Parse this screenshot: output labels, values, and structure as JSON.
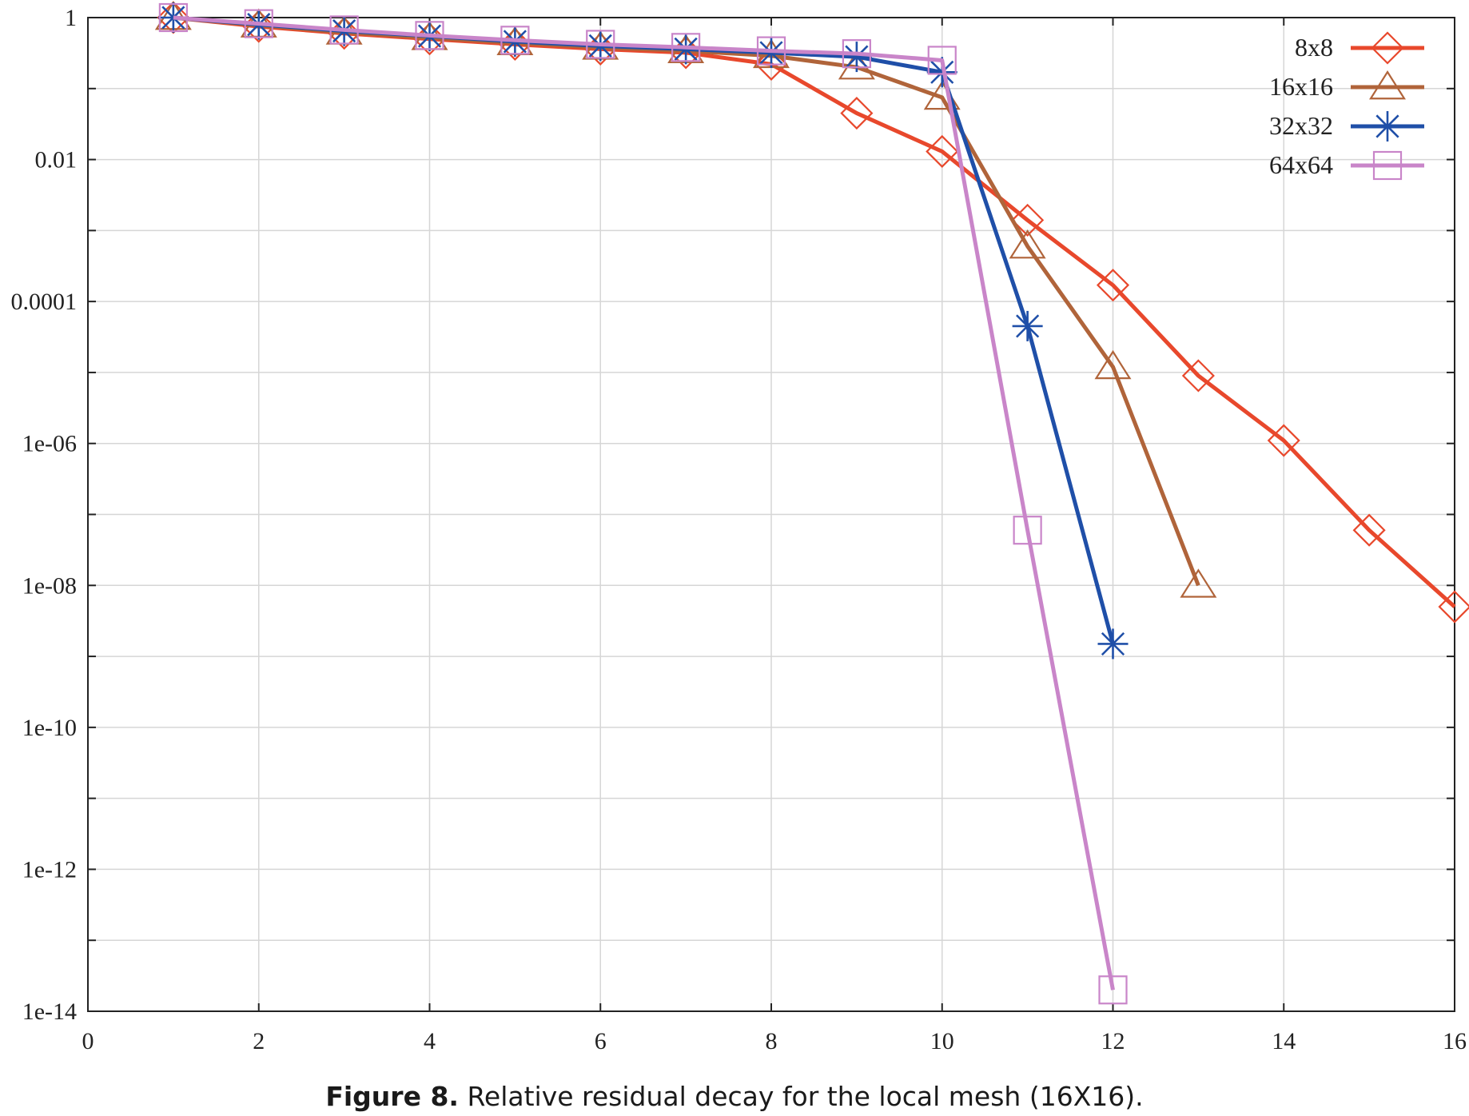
{
  "chart_data": {
    "type": "line",
    "title": "",
    "xlabel": "",
    "ylabel": "",
    "xlim": [
      0,
      16
    ],
    "ylim": [
      1e-14,
      1
    ],
    "yscale": "log",
    "grid": true,
    "legend_position": "top-right",
    "x_ticks": [
      "0",
      "2",
      "4",
      "6",
      "8",
      "10",
      "12",
      "14",
      "16"
    ],
    "y_ticks": [
      "1",
      "0.01",
      "0.0001",
      "1e-06",
      "1e-08",
      "1e-10",
      "1e-12",
      "1e-14"
    ],
    "series": [
      {
        "name": "8x8",
        "color": "#e8482c",
        "marker": "diamond",
        "x": [
          1,
          2,
          3,
          4,
          5,
          6,
          7,
          8,
          9,
          10,
          11,
          12,
          13,
          14,
          15,
          16
        ],
        "y": [
          1,
          0.75,
          0.6,
          0.5,
          0.42,
          0.36,
          0.32,
          0.22,
          0.045,
          0.013,
          0.0014,
          0.00017,
          9e-06,
          1.1e-06,
          6e-08,
          5e-09
        ]
      },
      {
        "name": "16x16",
        "color": "#b0643a",
        "marker": "triangle",
        "x": [
          1,
          2,
          3,
          4,
          5,
          6,
          7,
          8,
          9,
          10,
          11,
          12,
          13
        ],
        "y": [
          1,
          0.78,
          0.62,
          0.52,
          0.44,
          0.38,
          0.34,
          0.29,
          0.2,
          0.075,
          0.0006,
          1.2e-05,
          1e-08
        ]
      },
      {
        "name": "32x32",
        "color": "#1f4fa8",
        "marker": "asterisk",
        "x": [
          1,
          2,
          3,
          4,
          5,
          6,
          7,
          8,
          9,
          10,
          11,
          12
        ],
        "y": [
          1,
          0.8,
          0.65,
          0.55,
          0.46,
          0.4,
          0.36,
          0.32,
          0.28,
          0.17,
          4.5e-05,
          1.5e-09
        ]
      },
      {
        "name": "64x64",
        "color": "#c985c9",
        "marker": "square",
        "x": [
          1,
          2,
          3,
          4,
          5,
          6,
          7,
          8,
          9,
          10,
          11,
          12
        ],
        "y": [
          1,
          0.82,
          0.67,
          0.56,
          0.48,
          0.42,
          0.38,
          0.34,
          0.31,
          0.25,
          6e-08,
          2e-14
        ]
      }
    ]
  },
  "caption": {
    "label": "Figure 8.",
    "text": " Relative residual decay for the local mesh (16X16)."
  }
}
